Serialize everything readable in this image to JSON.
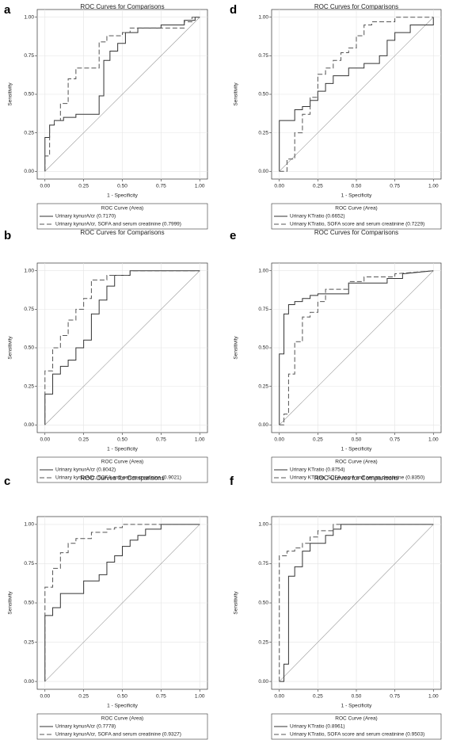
{
  "chart_data": [
    {
      "panel": "a",
      "type": "line",
      "title": "ROC Curves for Comparisons",
      "x_label": "1 - Specificity",
      "y_label": "Sensitivity",
      "legend_title": "ROC Curve (Area)",
      "grid": true,
      "reference_line": true,
      "xlim": [
        -0.05,
        1.05
      ],
      "ylim": [
        -0.05,
        1.05
      ],
      "xticks": [
        {
          "value": 0,
          "label": "0.00"
        },
        {
          "value": 0.25,
          "label": "0.25"
        },
        {
          "value": 0.5,
          "label": "0.50"
        },
        {
          "value": 0.75,
          "label": "0.75"
        },
        {
          "value": 1,
          "label": "1.00"
        }
      ],
      "yticks": [
        {
          "value": 0,
          "label": "0.00"
        },
        {
          "value": 0.25,
          "label": "0.25"
        },
        {
          "value": 0.5,
          "label": "0.50"
        },
        {
          "value": 0.75,
          "label": "0.75"
        },
        {
          "value": 1,
          "label": "1.00"
        }
      ],
      "series": [
        {
          "name": "Urinary kynurA/cr  (0.7170)",
          "color": "#333333",
          "line_style": "solid",
          "x": [
            0,
            0,
            0.03,
            0.03,
            0.06,
            0.06,
            0.12,
            0.12,
            0.2,
            0.2,
            0.35,
            0.35,
            0.38,
            0.38,
            0.42,
            0.42,
            0.47,
            0.47,
            0.52,
            0.52,
            0.6,
            0.6,
            0.75,
            0.75,
            0.9,
            0.9,
            0.97,
            0.97,
            1
          ],
          "values": [
            0,
            0.22,
            0.22,
            0.3,
            0.3,
            0.33,
            0.33,
            0.35,
            0.35,
            0.37,
            0.37,
            0.49,
            0.49,
            0.72,
            0.72,
            0.78,
            0.78,
            0.83,
            0.83,
            0.9,
            0.9,
            0.93,
            0.93,
            0.95,
            0.95,
            0.98,
            0.98,
            1,
            1
          ]
        },
        {
          "name": "Urinary kynurA/cr, SOFA and serum creatinine  (0.7999)",
          "color": "#555555",
          "line_style": "dashed",
          "x": [
            0,
            0,
            0.03,
            0.03,
            0.06,
            0.06,
            0.1,
            0.1,
            0.15,
            0.15,
            0.2,
            0.2,
            0.35,
            0.35,
            0.4,
            0.4,
            0.5,
            0.5,
            0.55,
            0.55,
            0.9,
            0.9,
            0.95,
            0.95,
            1
          ],
          "values": [
            0,
            0.1,
            0.1,
            0.3,
            0.3,
            0.33,
            0.33,
            0.44,
            0.44,
            0.6,
            0.6,
            0.67,
            0.67,
            0.84,
            0.84,
            0.88,
            0.88,
            0.9,
            0.9,
            0.93,
            0.93,
            0.97,
            0.97,
            1,
            1
          ]
        }
      ]
    },
    {
      "panel": "d",
      "type": "line",
      "title": "ROC Curves for Comparisons",
      "x_label": "1 - Specificity",
      "y_label": "Sensitivity",
      "legend_title": "ROC Curve (Area)",
      "grid": true,
      "reference_line": true,
      "xlim": [
        -0.05,
        1.05
      ],
      "ylim": [
        -0.05,
        1.05
      ],
      "xticks": [
        {
          "value": 0,
          "label": "0.00"
        },
        {
          "value": 0.25,
          "label": "0.25"
        },
        {
          "value": 0.5,
          "label": "0.50"
        },
        {
          "value": 0.75,
          "label": "0.75"
        },
        {
          "value": 1,
          "label": "1.00"
        }
      ],
      "yticks": [
        {
          "value": 0,
          "label": "0.00"
        },
        {
          "value": 0.25,
          "label": "0.25"
        },
        {
          "value": 0.5,
          "label": "0.50"
        },
        {
          "value": 0.75,
          "label": "0.75"
        },
        {
          "value": 1,
          "label": "1.00"
        }
      ],
      "series": [
        {
          "name": "Urinary KTratio  (0.6652)",
          "color": "#333333",
          "line_style": "solid",
          "x": [
            0,
            0,
            0.1,
            0.1,
            0.15,
            0.15,
            0.2,
            0.2,
            0.25,
            0.25,
            0.3,
            0.3,
            0.35,
            0.35,
            0.45,
            0.45,
            0.55,
            0.55,
            0.65,
            0.65,
            0.7,
            0.7,
            0.75,
            0.75,
            0.85,
            0.85,
            1,
            1
          ],
          "values": [
            0,
            0.33,
            0.33,
            0.4,
            0.4,
            0.42,
            0.42,
            0.46,
            0.46,
            0.52,
            0.52,
            0.57,
            0.57,
            0.62,
            0.62,
            0.67,
            0.67,
            0.7,
            0.7,
            0.75,
            0.75,
            0.85,
            0.85,
            0.9,
            0.9,
            0.95,
            0.95,
            1
          ]
        },
        {
          "name": "Urinary KTratio, SOFA score and serum creatinine  (0.7229)",
          "color": "#555555",
          "line_style": "dashed",
          "x": [
            0,
            0.05,
            0.05,
            0.1,
            0.1,
            0.15,
            0.15,
            0.2,
            0.2,
            0.25,
            0.25,
            0.3,
            0.3,
            0.35,
            0.35,
            0.4,
            0.4,
            0.45,
            0.45,
            0.5,
            0.5,
            0.55,
            0.55,
            0.6,
            0.6,
            0.75,
            0.75,
            1
          ],
          "values": [
            0,
            0,
            0.08,
            0.08,
            0.25,
            0.25,
            0.37,
            0.37,
            0.48,
            0.48,
            0.63,
            0.63,
            0.67,
            0.67,
            0.72,
            0.72,
            0.77,
            0.77,
            0.8,
            0.8,
            0.88,
            0.88,
            0.95,
            0.95,
            0.97,
            0.97,
            1,
            1
          ]
        }
      ]
    },
    {
      "panel": "b",
      "type": "line",
      "title": "ROC Curves for Comparisons",
      "x_label": "1 - Specificity",
      "y_label": "Sensitivity",
      "legend_title": "ROC Curve (Area)",
      "grid": true,
      "reference_line": true,
      "xlim": [
        -0.05,
        1.05
      ],
      "ylim": [
        -0.05,
        1.05
      ],
      "xticks": [
        {
          "value": 0,
          "label": "0.00"
        },
        {
          "value": 0.25,
          "label": "0.25"
        },
        {
          "value": 0.5,
          "label": "0.50"
        },
        {
          "value": 0.75,
          "label": "0.75"
        },
        {
          "value": 1,
          "label": "1.00"
        }
      ],
      "yticks": [
        {
          "value": 0,
          "label": "0.00"
        },
        {
          "value": 0.25,
          "label": "0.25"
        },
        {
          "value": 0.5,
          "label": "0.50"
        },
        {
          "value": 0.75,
          "label": "0.75"
        },
        {
          "value": 1,
          "label": "1.00"
        }
      ],
      "series": [
        {
          "name": "Urinary kynurA/cr  (0.8042)",
          "color": "#333333",
          "line_style": "solid",
          "x": [
            0,
            0,
            0.05,
            0.05,
            0.1,
            0.1,
            0.15,
            0.15,
            0.2,
            0.2,
            0.25,
            0.25,
            0.3,
            0.3,
            0.35,
            0.35,
            0.4,
            0.4,
            0.45,
            0.45,
            0.55,
            0.55,
            1
          ],
          "values": [
            0,
            0.2,
            0.2,
            0.33,
            0.33,
            0.38,
            0.38,
            0.42,
            0.42,
            0.5,
            0.5,
            0.55,
            0.55,
            0.72,
            0.72,
            0.81,
            0.81,
            0.9,
            0.9,
            0.97,
            0.97,
            1,
            1
          ]
        },
        {
          "name": "Urinary kynurA/cr, SOFA and serum creatinine  (0.9021)",
          "color": "#555555",
          "line_style": "dashed",
          "x": [
            0,
            0,
            0.05,
            0.05,
            0.1,
            0.1,
            0.15,
            0.15,
            0.2,
            0.2,
            0.25,
            0.25,
            0.3,
            0.3,
            0.4,
            0.4,
            0.55,
            0.55,
            1
          ],
          "values": [
            0,
            0.35,
            0.35,
            0.5,
            0.5,
            0.58,
            0.58,
            0.68,
            0.68,
            0.75,
            0.75,
            0.82,
            0.82,
            0.94,
            0.94,
            0.97,
            0.97,
            1,
            1
          ]
        }
      ]
    },
    {
      "panel": "e",
      "type": "line",
      "title": "ROC Curves for Comparisons",
      "x_label": "1 - Specificity",
      "y_label": "Sensitivity",
      "legend_title": "ROC Curve (Area)",
      "grid": true,
      "reference_line": true,
      "xlim": [
        -0.05,
        1.05
      ],
      "ylim": [
        -0.05,
        1.05
      ],
      "xticks": [
        {
          "value": 0,
          "label": "0.00"
        },
        {
          "value": 0.25,
          "label": "0.25"
        },
        {
          "value": 0.5,
          "label": "0.50"
        },
        {
          "value": 0.75,
          "label": "0.75"
        },
        {
          "value": 1,
          "label": "1.00"
        }
      ],
      "yticks": [
        {
          "value": 0,
          "label": "0.00"
        },
        {
          "value": 0.25,
          "label": "0.25"
        },
        {
          "value": 0.5,
          "label": "0.50"
        },
        {
          "value": 0.75,
          "label": "0.75"
        },
        {
          "value": 1,
          "label": "1.00"
        }
      ],
      "series": [
        {
          "name": "Urinary KTratio  (0.8754)",
          "color": "#333333",
          "line_style": "solid",
          "x": [
            0,
            0,
            0.03,
            0.03,
            0.06,
            0.06,
            0.1,
            0.1,
            0.15,
            0.15,
            0.2,
            0.2,
            0.25,
            0.25,
            0.45,
            0.45,
            0.7,
            0.7,
            0.8,
            0.8,
            1
          ],
          "values": [
            0,
            0.46,
            0.46,
            0.72,
            0.72,
            0.78,
            0.78,
            0.8,
            0.8,
            0.82,
            0.82,
            0.84,
            0.84,
            0.85,
            0.85,
            0.92,
            0.92,
            0.95,
            0.95,
            0.98,
            1
          ]
        },
        {
          "name": "Urinary KTratio, SOFA score and serum creatinine  (0.8350)",
          "color": "#555555",
          "line_style": "dashed",
          "x": [
            0,
            0.03,
            0.03,
            0.06,
            0.06,
            0.1,
            0.1,
            0.15,
            0.15,
            0.2,
            0.2,
            0.25,
            0.25,
            0.3,
            0.3,
            0.45,
            0.45,
            0.55,
            0.55,
            0.75,
            0.75,
            1
          ],
          "values": [
            0,
            0,
            0.07,
            0.07,
            0.33,
            0.33,
            0.54,
            0.54,
            0.7,
            0.7,
            0.73,
            0.73,
            0.8,
            0.8,
            0.88,
            0.88,
            0.93,
            0.93,
            0.96,
            0.96,
            0.98,
            1
          ]
        }
      ]
    },
    {
      "panel": "c",
      "type": "line",
      "title": "ROC Curves for Comparisons",
      "x_label": "1 - Specificity",
      "y_label": "Sensitivity",
      "legend_title": "ROC Curve (Area)",
      "grid": true,
      "reference_line": true,
      "xlim": [
        -0.05,
        1.05
      ],
      "ylim": [
        -0.05,
        1.05
      ],
      "xticks": [
        {
          "value": 0,
          "label": "0.00"
        },
        {
          "value": 0.25,
          "label": "0.25"
        },
        {
          "value": 0.5,
          "label": "0.50"
        },
        {
          "value": 0.75,
          "label": "0.75"
        },
        {
          "value": 1,
          "label": "1.00"
        }
      ],
      "yticks": [
        {
          "value": 0,
          "label": "0.00"
        },
        {
          "value": 0.25,
          "label": "0.25"
        },
        {
          "value": 0.5,
          "label": "0.50"
        },
        {
          "value": 0.75,
          "label": "0.75"
        },
        {
          "value": 1,
          "label": "1.00"
        }
      ],
      "series": [
        {
          "name": "Urinary kynurA/cr  (0.7778)",
          "color": "#333333",
          "line_style": "solid",
          "x": [
            0,
            0,
            0.05,
            0.05,
            0.1,
            0.1,
            0.25,
            0.25,
            0.35,
            0.35,
            0.4,
            0.4,
            0.45,
            0.45,
            0.5,
            0.5,
            0.55,
            0.55,
            0.6,
            0.6,
            0.65,
            0.65,
            0.75,
            0.75,
            1
          ],
          "values": [
            0,
            0.42,
            0.42,
            0.47,
            0.47,
            0.56,
            0.56,
            0.64,
            0.64,
            0.68,
            0.68,
            0.76,
            0.76,
            0.8,
            0.8,
            0.86,
            0.86,
            0.9,
            0.9,
            0.93,
            0.93,
            0.97,
            0.97,
            1,
            1
          ]
        },
        {
          "name": "Urinary kynurA/cr, SOFA and serum creatinine  (0.9327)",
          "color": "#555555",
          "line_style": "dashed",
          "x": [
            0,
            0,
            0.05,
            0.05,
            0.1,
            0.1,
            0.15,
            0.15,
            0.2,
            0.2,
            0.3,
            0.3,
            0.4,
            0.4,
            0.45,
            0.45,
            0.5,
            0.5,
            1
          ],
          "values": [
            0,
            0.6,
            0.6,
            0.72,
            0.72,
            0.82,
            0.82,
            0.88,
            0.88,
            0.91,
            0.91,
            0.95,
            0.95,
            0.97,
            0.97,
            0.98,
            0.98,
            1,
            1
          ]
        }
      ]
    },
    {
      "panel": "f",
      "type": "line",
      "title": "ROC Curves for Comparisons",
      "x_label": "1 - Specificity",
      "y_label": "Sensitivity",
      "legend_title": "ROC Curve (Area)",
      "grid": true,
      "reference_line": true,
      "xlim": [
        -0.05,
        1.05
      ],
      "ylim": [
        -0.05,
        1.05
      ],
      "xticks": [
        {
          "value": 0,
          "label": "0.00"
        },
        {
          "value": 0.25,
          "label": "0.25"
        },
        {
          "value": 0.5,
          "label": "0.50"
        },
        {
          "value": 0.75,
          "label": "0.75"
        },
        {
          "value": 1,
          "label": "1.00"
        }
      ],
      "yticks": [
        {
          "value": 0,
          "label": "0.00"
        },
        {
          "value": 0.25,
          "label": "0.25"
        },
        {
          "value": 0.5,
          "label": "0.50"
        },
        {
          "value": 0.75,
          "label": "0.75"
        },
        {
          "value": 1,
          "label": "1.00"
        }
      ],
      "series": [
        {
          "name": "Urinary KTratio  (0.8961)",
          "color": "#333333",
          "line_style": "solid",
          "x": [
            0,
            0.03,
            0.03,
            0.06,
            0.06,
            0.1,
            0.1,
            0.15,
            0.15,
            0.2,
            0.2,
            0.3,
            0.3,
            0.35,
            0.35,
            0.4,
            0.4,
            1
          ],
          "values": [
            0,
            0,
            0.11,
            0.11,
            0.67,
            0.67,
            0.73,
            0.73,
            0.83,
            0.83,
            0.88,
            0.88,
            0.93,
            0.93,
            0.97,
            0.97,
            1,
            1
          ]
        },
        {
          "name": "Urinary KTratio, SOFA score and serum creatinine  (0.9503)",
          "color": "#555555",
          "line_style": "dashed",
          "x": [
            0,
            0,
            0.05,
            0.05,
            0.1,
            0.1,
            0.15,
            0.15,
            0.2,
            0.2,
            0.25,
            0.25,
            0.35,
            0.35,
            1
          ],
          "values": [
            0,
            0.8,
            0.8,
            0.83,
            0.83,
            0.85,
            0.85,
            0.88,
            0.88,
            0.92,
            0.92,
            0.96,
            0.96,
            1,
            1
          ]
        }
      ]
    }
  ]
}
